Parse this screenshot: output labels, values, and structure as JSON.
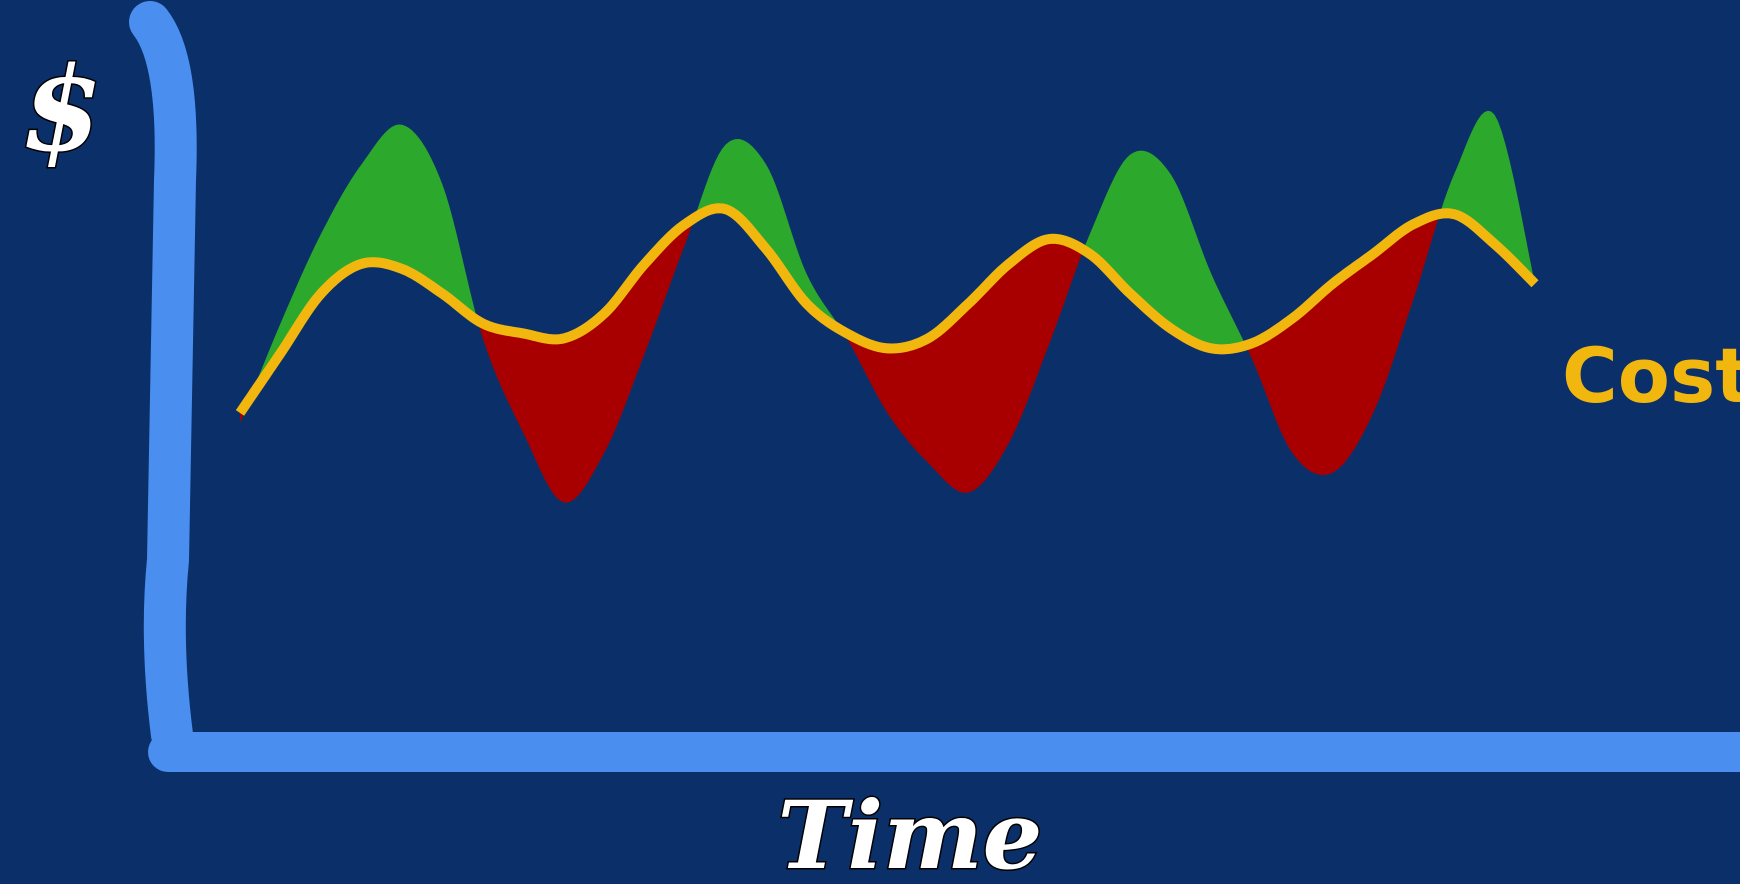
{
  "chart_data": {
    "type": "line",
    "title": "",
    "ylabel": "$",
    "xlabel": "Time",
    "grid": false,
    "legend": "none",
    "x": [
      0,
      0.5,
      1,
      1.5,
      2,
      2.5,
      3,
      3.5,
      4,
      4.5,
      5,
      5.5,
      6,
      6.5,
      7,
      7.5,
      8,
      8.5,
      9,
      9.5,
      10,
      10.5,
      11,
      11.5,
      12,
      12.5,
      13,
      13.5,
      14,
      14.5,
      15,
      15.5,
      16
    ],
    "xlim": [
      0,
      16
    ],
    "ylim": [
      0,
      100
    ],
    "series": [
      {
        "name": "",
        "role": "revenue",
        "values": [
          30,
          50,
          68,
          82,
          90,
          78,
          47,
          28,
          14,
          24,
          44,
          66,
          86,
          82,
          60,
          47,
          32,
          22,
          16,
          26,
          46,
          68,
          84,
          80,
          60,
          43,
          24,
          20,
          32,
          55,
          80,
          92,
          58
        ],
        "color": "#2ca82c"
      },
      {
        "name": "Cost",
        "role": "cost",
        "values": [
          32,
          44,
          56,
          62,
          61,
          56,
          50,
          48,
          47,
          52,
          62,
          70,
          73,
          65,
          54,
          48,
          45,
          47,
          54,
          62,
          67,
          64,
          56,
          49,
          45,
          46,
          51,
          58,
          64,
          70,
          72,
          66,
          58
        ],
        "color": "#f2b70f"
      }
    ],
    "fill_colors": {
      "profit": "#2ca82c",
      "loss": "#a80000"
    },
    "axis_color": "#4a8ef0",
    "background": "#0b3069"
  }
}
